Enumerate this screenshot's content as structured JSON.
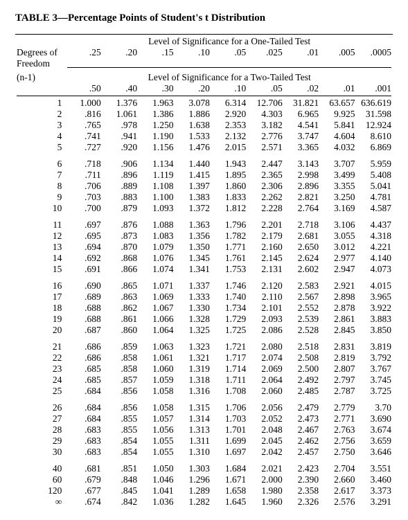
{
  "title": "TABLE 3—Percentage Points of Student's t Distribution",
  "labels": {
    "degrees": "Degrees of",
    "freedom": "Freedom",
    "nminus1": "(n-1)",
    "one_tail": "Level of Significance for a One-Tailed Test",
    "two_tail": "Level of Significance for a Two-Tailed Test"
  },
  "alpha_one": [
    ".25",
    ".20",
    ".15",
    ".10",
    ".05",
    ".025",
    ".01",
    ".005",
    ".0005"
  ],
  "alpha_two": [
    ".50",
    ".40",
    ".30",
    ".20",
    ".10",
    ".05",
    ".02",
    ".01",
    ".001"
  ],
  "groups": [
    [
      {
        "df": "1",
        "v": [
          "1.000",
          "1.376",
          "1.963",
          "3.078",
          "6.314",
          "12.706",
          "31.821",
          "63.657",
          "636.619"
        ]
      },
      {
        "df": "2",
        "v": [
          ".816",
          "1.061",
          "1.386",
          "1.886",
          "2.920",
          "4.303",
          "6.965",
          "9.925",
          "31.598"
        ]
      },
      {
        "df": "3",
        "v": [
          ".765",
          ".978",
          "1.250",
          "1.638",
          "2.353",
          "3.182",
          "4.541",
          "5.841",
          "12.924"
        ]
      },
      {
        "df": "4",
        "v": [
          ".741",
          ".941",
          "1.190",
          "1.533",
          "2.132",
          "2.776",
          "3.747",
          "4.604",
          "8.610"
        ]
      },
      {
        "df": "5",
        "v": [
          ".727",
          ".920",
          "1.156",
          "1.476",
          "2.015",
          "2.571",
          "3.365",
          "4.032",
          "6.869"
        ]
      }
    ],
    [
      {
        "df": "6",
        "v": [
          ".718",
          ".906",
          "1.134",
          "1.440",
          "1.943",
          "2.447",
          "3.143",
          "3.707",
          "5.959"
        ]
      },
      {
        "df": "7",
        "v": [
          ".711",
          ".896",
          "1.119",
          "1.415",
          "1.895",
          "2.365",
          "2.998",
          "3.499",
          "5.408"
        ]
      },
      {
        "df": "8",
        "v": [
          ".706",
          ".889",
          "1.108",
          "1.397",
          "1.860",
          "2.306",
          "2.896",
          "3.355",
          "5.041"
        ]
      },
      {
        "df": "9",
        "v": [
          ".703",
          ".883",
          "1.100",
          "1.383",
          "1.833",
          "2.262",
          "2.821",
          "3.250",
          "4.781"
        ]
      },
      {
        "df": "10",
        "v": [
          ".700",
          ".879",
          "1.093",
          "1.372",
          "1.812",
          "2.228",
          "2.764",
          "3.169",
          "4.587"
        ]
      }
    ],
    [
      {
        "df": "11",
        "v": [
          ".697",
          ".876",
          "1.088",
          "1.363",
          "1.796",
          "2.201",
          "2.718",
          "3.106",
          "4.437"
        ]
      },
      {
        "df": "12",
        "v": [
          ".695",
          ".873",
          "1.083",
          "1.356",
          "1.782",
          "2.179",
          "2.681",
          "3.055",
          "4.318"
        ]
      },
      {
        "df": "13",
        "v": [
          ".694",
          ".870",
          "1.079",
          "1.350",
          "1.771",
          "2.160",
          "2.650",
          "3.012",
          "4.221"
        ]
      },
      {
        "df": "14",
        "v": [
          ".692",
          ".868",
          "1.076",
          "1.345",
          "1.761",
          "2.145",
          "2.624",
          "2.977",
          "4.140"
        ]
      },
      {
        "df": "15",
        "v": [
          ".691",
          ".866",
          "1.074",
          "1.341",
          "1.753",
          "2.131",
          "2.602",
          "2.947",
          "4.073"
        ]
      }
    ],
    [
      {
        "df": "16",
        "v": [
          ".690",
          ".865",
          "1.071",
          "1.337",
          "1.746",
          "2.120",
          "2.583",
          "2.921",
          "4.015"
        ]
      },
      {
        "df": "17",
        "v": [
          ".689",
          ".863",
          "1.069",
          "1.333",
          "1.740",
          "2.110",
          "2.567",
          "2.898",
          "3.965"
        ]
      },
      {
        "df": "18",
        "v": [
          ".688",
          ".862",
          "1.067",
          "1.330",
          "1.734",
          "2.101",
          "2.552",
          "2.878",
          "3.922"
        ]
      },
      {
        "df": "19",
        "v": [
          ".688",
          ".861",
          "1.066",
          "1.328",
          "1.729",
          "2.093",
          "2.539",
          "2.861",
          "3.883"
        ]
      },
      {
        "df": "20",
        "v": [
          ".687",
          ".860",
          "1.064",
          "1.325",
          "1.725",
          "2.086",
          "2.528",
          "2.845",
          "3.850"
        ]
      }
    ],
    [
      {
        "df": "21",
        "v": [
          ".686",
          ".859",
          "1.063",
          "1.323",
          "1.721",
          "2.080",
          "2.518",
          "2.831",
          "3.819"
        ]
      },
      {
        "df": "22",
        "v": [
          ".686",
          ".858",
          "1.061",
          "1.321",
          "1.717",
          "2.074",
          "2.508",
          "2.819",
          "3.792"
        ]
      },
      {
        "df": "23",
        "v": [
          ".685",
          ".858",
          "1.060",
          "1.319",
          "1.714",
          "2.069",
          "2.500",
          "2.807",
          "3.767"
        ]
      },
      {
        "df": "24",
        "v": [
          ".685",
          ".857",
          "1.059",
          "1.318",
          "1.711",
          "2.064",
          "2.492",
          "2.797",
          "3.745"
        ]
      },
      {
        "df": "25",
        "v": [
          ".684",
          ".856",
          "1.058",
          "1.316",
          "1.708",
          "2.060",
          "2.485",
          "2.787",
          "3.725"
        ]
      }
    ],
    [
      {
        "df": "26",
        "v": [
          ".684",
          ".856",
          "1.058",
          "1.315",
          "1.706",
          "2.056",
          "2.479",
          "2.779",
          "3.70"
        ]
      },
      {
        "df": "27",
        "v": [
          ".684",
          ".855",
          "1.057",
          "1.314",
          "1.703",
          "2.052",
          "2.473",
          "2.771",
          "3.690"
        ]
      },
      {
        "df": "28",
        "v": [
          ".683",
          ".855",
          "1.056",
          "1.313",
          "1.701",
          "2.048",
          "2.467",
          "2.763",
          "3.674"
        ]
      },
      {
        "df": "29",
        "v": [
          ".683",
          ".854",
          "1.055",
          "1.311",
          "1.699",
          "2.045",
          "2.462",
          "2.756",
          "3.659"
        ]
      },
      {
        "df": "30",
        "v": [
          ".683",
          ".854",
          "1.055",
          "1.310",
          "1.697",
          "2.042",
          "2.457",
          "2.750",
          "3.646"
        ]
      }
    ],
    [
      {
        "df": "40",
        "v": [
          ".681",
          ".851",
          "1.050",
          "1.303",
          "1.684",
          "2.021",
          "2.423",
          "2.704",
          "3.551"
        ]
      },
      {
        "df": "60",
        "v": [
          ".679",
          ".848",
          "1.046",
          "1.296",
          "1.671",
          "2.000",
          "2.390",
          "2.660",
          "3.460"
        ]
      },
      {
        "df": "120",
        "v": [
          ".677",
          ".845",
          "1.041",
          "1.289",
          "1.658",
          "1.980",
          "2.358",
          "2.617",
          "3.373"
        ]
      },
      {
        "df": "∞",
        "v": [
          ".674",
          ".842",
          "1.036",
          "1.282",
          "1.645",
          "1.960",
          "2.326",
          "2.576",
          "3.291"
        ]
      }
    ]
  ]
}
